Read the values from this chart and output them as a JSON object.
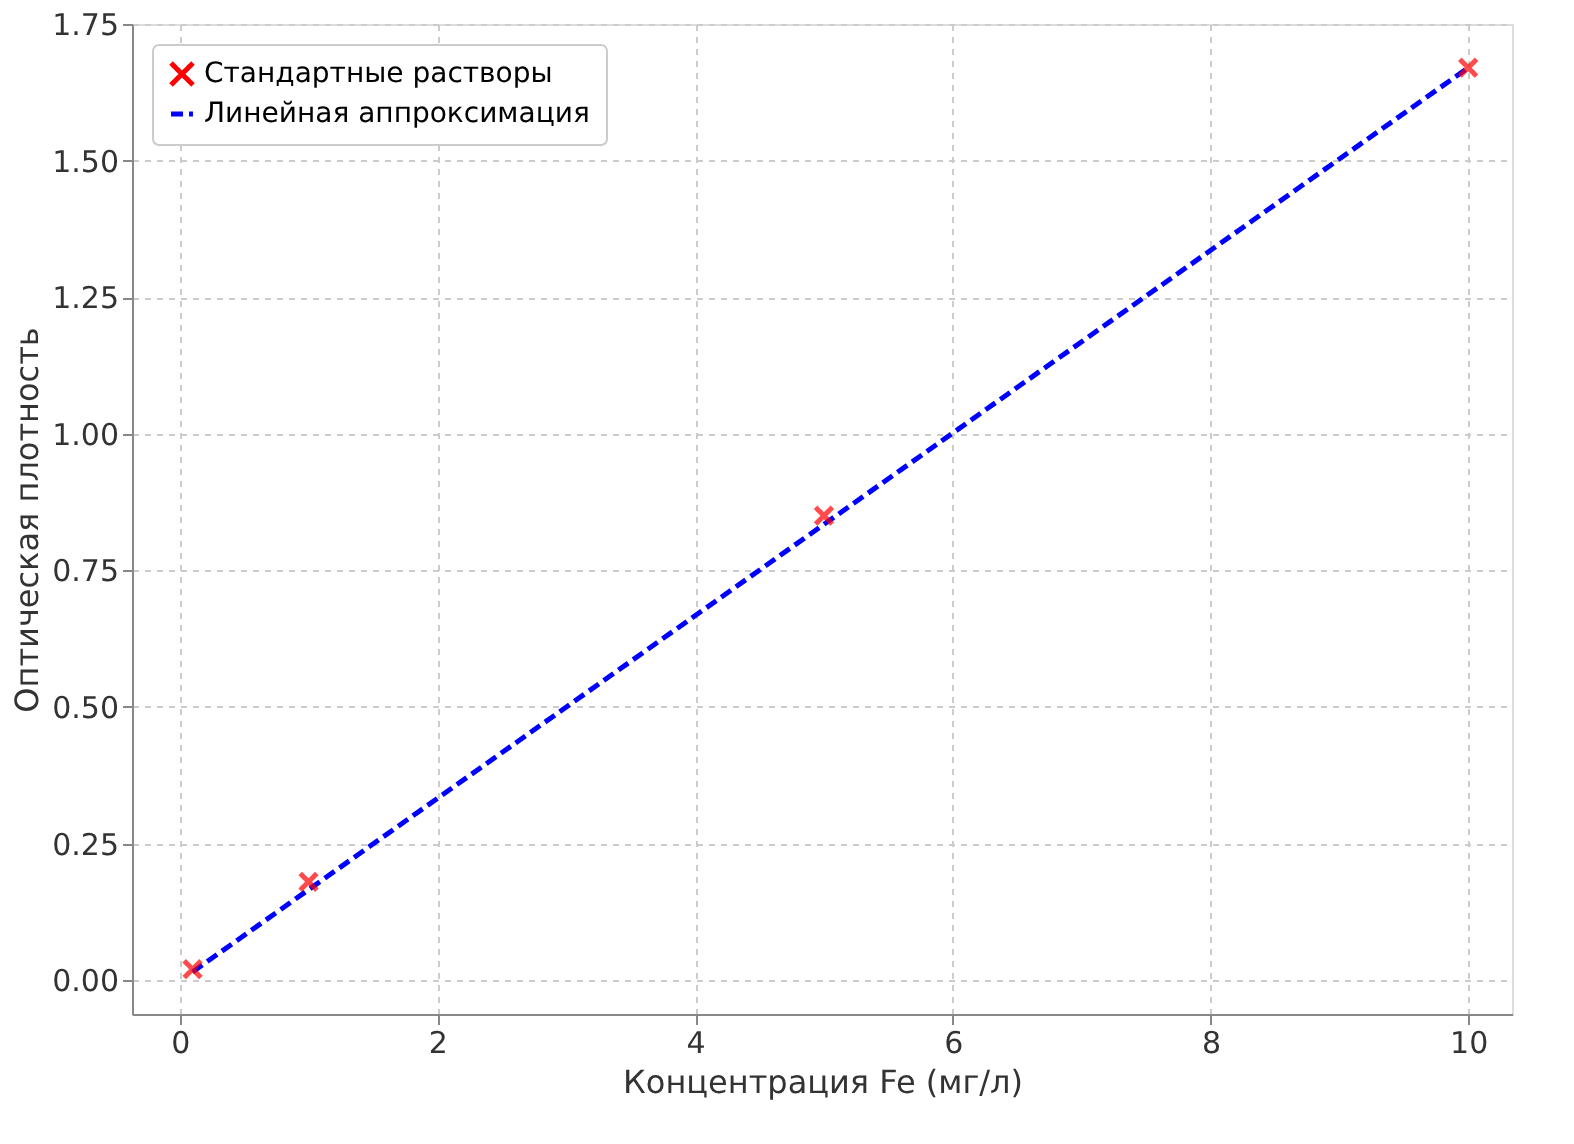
{
  "chart_data": {
    "type": "scatter",
    "xlabel": "Концентрация Fe (мг/л)",
    "ylabel": "Оптическая плотность",
    "series": [
      {
        "name": "Стандартные растворы",
        "color": "#ff0000",
        "marker": "cross",
        "x": [
          0.1,
          1,
          5,
          10
        ],
        "values": [
          0.02,
          0.18,
          0.85,
          1.67
        ]
      },
      {
        "name": "Линейная аппроксимация",
        "type": "line",
        "color": "#0000ff",
        "line_style": "dashed",
        "marker": "none",
        "x": [
          0.1,
          10
        ],
        "values": [
          0.015,
          1.67
        ]
      }
    ],
    "xlim": [
      -0.37,
      10.34
    ],
    "ylim": [
      -0.062,
      1.75
    ],
    "xticks": [
      0,
      2,
      4,
      6,
      8,
      10
    ],
    "yticks": [
      {
        "value": 0,
        "label": "0.00"
      },
      {
        "value": 0.25,
        "label": "0.25"
      },
      {
        "value": 0.5,
        "label": "0.50"
      },
      {
        "value": 0.75,
        "label": "0.75"
      },
      {
        "value": 1.0,
        "label": "1.00"
      },
      {
        "value": 1.25,
        "label": "1.25"
      },
      {
        "value": 1.5,
        "label": "1.50"
      },
      {
        "value": 1.75,
        "label": "1.75"
      }
    ],
    "grid": true,
    "legend": "top left"
  }
}
